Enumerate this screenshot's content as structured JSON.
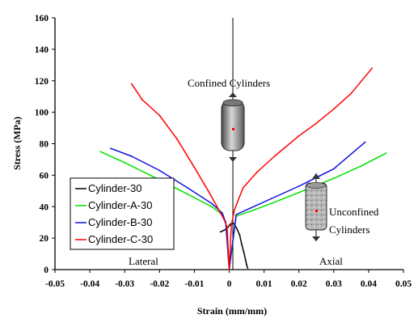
{
  "chart_data": {
    "type": "line",
    "xlabel": "Strain (mm/mm)",
    "ylabel": "Stress (MPa)",
    "xlim": [
      -0.05,
      0.05
    ],
    "ylim": [
      0,
      160
    ],
    "x_ticks": [
      "-0.05",
      "-0.04",
      "-0.03",
      "-0.02",
      "-0.01",
      "0",
      "0.01",
      "0.02",
      "0.03",
      "0.04",
      "0.05"
    ],
    "y_ticks": [
      "0",
      "20",
      "40",
      "60",
      "80",
      "100",
      "120",
      "140",
      "160"
    ],
    "grid": false,
    "legend_position": "bottom-left",
    "series": [
      {
        "name": "Cylinder-30",
        "color": "#000000",
        "x": [
          -0.0025,
          -0.0015,
          -0.0008,
          -0.0003,
          0.0,
          0.0004,
          0.0009,
          0.0015,
          0.0022,
          0.003,
          0.0036,
          0.0042,
          0.0047,
          0.005,
          0.0053
        ],
        "y": [
          24,
          25,
          26,
          27,
          28,
          29,
          29.5,
          29,
          26,
          22,
          16,
          11,
          6,
          3,
          1
        ]
      },
      {
        "name": "Cylinder-A-30",
        "color": "#00e000",
        "x": [
          -0.037,
          -0.03,
          -0.02,
          -0.012,
          -0.005,
          -0.002,
          -0.001,
          0.0,
          0.002,
          0.006,
          0.012,
          0.02,
          0.03,
          0.038,
          0.045
        ],
        "y": [
          75,
          68,
          57,
          48,
          40,
          35,
          30,
          0,
          34,
          37,
          42,
          49,
          58,
          66,
          74
        ]
      },
      {
        "name": "Cylinder-B-30",
        "color": "#1010e0",
        "x": [
          -0.034,
          -0.028,
          -0.02,
          -0.012,
          -0.005,
          -0.002,
          -0.001,
          0.0,
          0.002,
          0.006,
          0.012,
          0.02,
          0.03,
          0.039
        ],
        "y": [
          77,
          72,
          63,
          52,
          42,
          36,
          30,
          0,
          35,
          39,
          45,
          53,
          64,
          81
        ]
      },
      {
        "name": "Cylinder-C-30",
        "color": "#ff0000",
        "x": [
          -0.028,
          -0.025,
          -0.02,
          -0.015,
          -0.01,
          -0.006,
          -0.003,
          -0.0015,
          -0.0006,
          0.0,
          0.0006,
          0.0015,
          0.004,
          0.008,
          0.013,
          0.02,
          0.025,
          0.03,
          0.035,
          0.038,
          0.041
        ],
        "y": [
          118,
          108,
          98,
          83,
          65,
          50,
          38,
          32,
          27,
          0,
          28,
          38,
          52,
          62,
          72,
          85,
          93,
          102,
          112,
          120,
          128
        ]
      }
    ],
    "annotations": {
      "confined": "Confined Cylinders",
      "unconfined_line1": "Unconfined",
      "unconfined_line2": "Cylinders",
      "lateral": "Lateral",
      "axial": "Axial"
    }
  }
}
